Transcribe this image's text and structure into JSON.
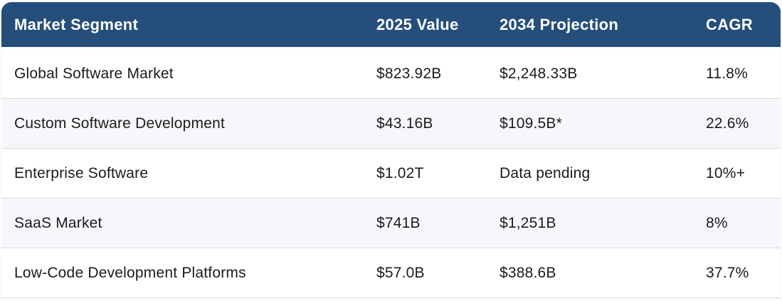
{
  "table": {
    "columns": [
      {
        "label": "Market Segment"
      },
      {
        "label": "2025 Value"
      },
      {
        "label": "2034 Projection"
      },
      {
        "label": "CAGR"
      }
    ],
    "rows": [
      {
        "segment": "Global Software Market",
        "value_2025": "$823.92B",
        "projection_2034": "$2,248.33B",
        "cagr": "11.8%"
      },
      {
        "segment": "Custom Software Development",
        "value_2025": "$43.16B",
        "projection_2034": "$109.5B*",
        "cagr": "22.6%"
      },
      {
        "segment": "Enterprise Software",
        "value_2025": "$1.02T",
        "projection_2034": "Data pending",
        "cagr": "10%+"
      },
      {
        "segment": "SaaS Market",
        "value_2025": "$741B",
        "projection_2034": "$1,251B",
        "cagr": "8%"
      },
      {
        "segment": "Low-Code Development Platforms",
        "value_2025": "$57.0B",
        "projection_2034": "$388.6B",
        "cagr": "37.7%"
      }
    ],
    "colors": {
      "header_bg": "#254e7b",
      "header_text": "#ffffff",
      "row_bg": "#ffffff",
      "row_alt_bg": "#f5f7fb",
      "body_text": "#1b1b1b",
      "divider": "#d9d9d9"
    }
  },
  "chart_data": {
    "type": "table",
    "title": "",
    "columns": [
      "Market Segment",
      "2025 Value",
      "2034 Projection",
      "CAGR"
    ],
    "rows": [
      [
        "Global Software Market",
        "$823.92B",
        "$2,248.33B",
        "11.8%"
      ],
      [
        "Custom Software Development",
        "$43.16B",
        "$109.5B*",
        "22.6%"
      ],
      [
        "Enterprise Software",
        "$1.02T",
        "Data pending",
        "10%+"
      ],
      [
        "SaaS Market",
        "$741B",
        "$1,251B",
        "8%"
      ],
      [
        "Low-Code Development Platforms",
        "$57.0B",
        "$388.6B",
        "37.7%"
      ]
    ],
    "layout_hints": {
      "header_style": "dark-navy, white bold text, rounded top corners",
      "zebra_striping": true
    }
  }
}
